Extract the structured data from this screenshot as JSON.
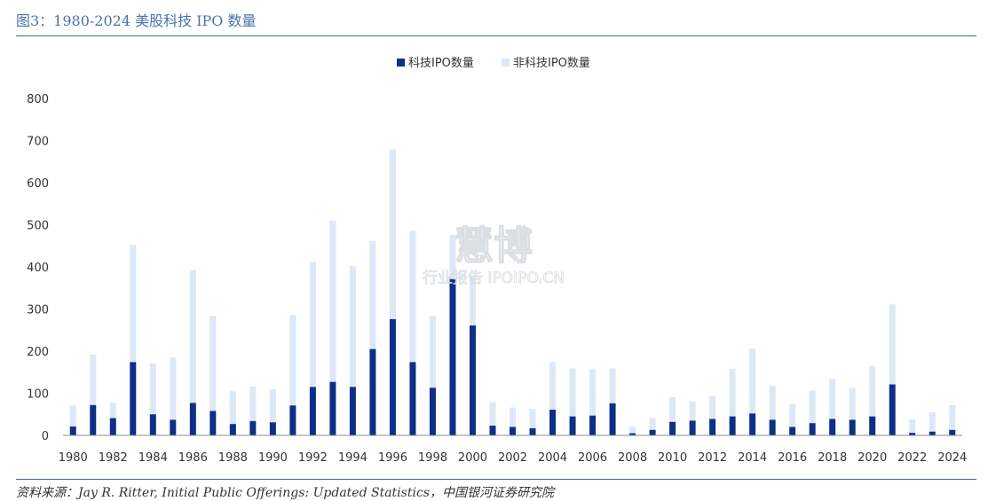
{
  "header": {
    "title": "图3：1980-2024 美股科技 IPO 数量"
  },
  "footer": {
    "source": "资料来源：Jay R. Ritter, Initial Public Offerings: Updated Statistics，中国银河证券研究院"
  },
  "watermark": {
    "line1": "慧博",
    "line2": "行业报告 IPOIPO.CN"
  },
  "chart_data": {
    "type": "bar",
    "stacked": true,
    "categories": [
      1980,
      1981,
      1982,
      1983,
      1984,
      1985,
      1986,
      1987,
      1988,
      1989,
      1990,
      1991,
      1992,
      1993,
      1994,
      1995,
      1996,
      1997,
      1998,
      1999,
      2000,
      2001,
      2002,
      2003,
      2004,
      2005,
      2006,
      2007,
      2008,
      2009,
      2010,
      2011,
      2012,
      2013,
      2014,
      2015,
      2016,
      2017,
      2018,
      2019,
      2020,
      2021,
      2022,
      2023,
      2024
    ],
    "tick_labels": [
      "1980",
      "1982",
      "1984",
      "1986",
      "1988",
      "1990",
      "1992",
      "1994",
      "1996",
      "1998",
      "2000",
      "2002",
      "2004",
      "2006",
      "2008",
      "2010",
      "2012",
      "2014",
      "2016",
      "2018",
      "2020",
      "2022",
      "2024"
    ],
    "series": [
      {
        "name": "科技IPO数量",
        "color": "#0f2f86",
        "values": [
          21,
          72,
          41,
          174,
          50,
          37,
          77,
          58,
          27,
          34,
          31,
          71,
          115,
          127,
          115,
          205,
          276,
          174,
          113,
          371,
          261,
          23,
          20,
          17,
          61,
          45,
          47,
          76,
          5,
          13,
          32,
          35,
          39,
          45,
          52,
          37,
          20,
          29,
          39,
          37,
          45,
          121,
          6,
          9,
          13
        ]
      },
      {
        "name": "非科技IPO数量",
        "color": "#dce8f7",
        "values": [
          50,
          120,
          36,
          278,
          121,
          148,
          316,
          226,
          78,
          82,
          79,
          215,
          297,
          383,
          287,
          257,
          403,
          311,
          170,
          105,
          119,
          56,
          46,
          46,
          113,
          114,
          110,
          83,
          15,
          28,
          59,
          46,
          54,
          113,
          154,
          81,
          55,
          77,
          95,
          76,
          120,
          190,
          32,
          46,
          59
        ]
      }
    ],
    "ylim": [
      0,
      800
    ],
    "yticks": [
      "0",
      "100",
      "200",
      "300",
      "400",
      "500",
      "600",
      "700",
      "800"
    ],
    "grid": false,
    "legend": "top-center"
  }
}
